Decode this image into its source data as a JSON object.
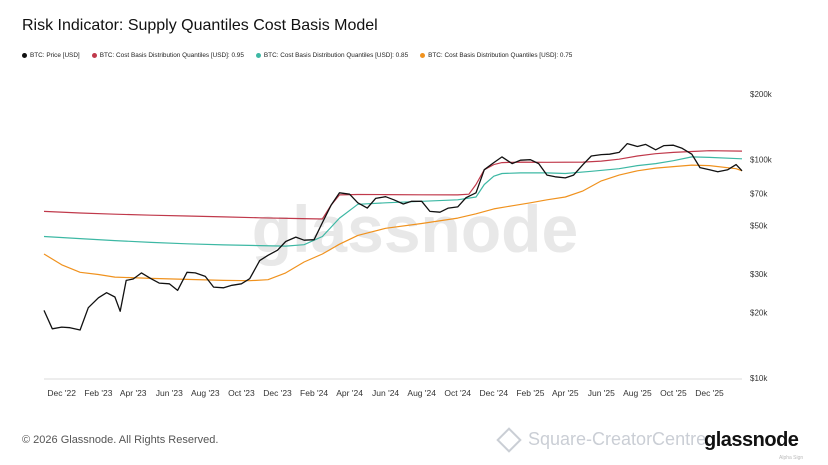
{
  "title": "Risk Indicator: Supply Quantiles Cost Basis Model",
  "legend": [
    {
      "label": "BTC: Price [USD]",
      "color": "#111111"
    },
    {
      "label": "BTC: Cost Basis Distribution Quantiles [USD]: 0.95",
      "color": "#c0394b"
    },
    {
      "label": "BTC: Cost Basis Distribution Quantiles [USD]: 0.85",
      "color": "#3db8a4"
    },
    {
      "label": "BTC: Cost Basis Distribution Quantiles [USD]: 0.75",
      "color": "#f0921e"
    }
  ],
  "footer": "© 2026 Glassnode. All Rights Reserved.",
  "logo": "glassnode",
  "watermark": "glassnode",
  "share_text": "Square-CreatorCentre...",
  "share_small": "Alpha Sign",
  "chart_data": {
    "type": "line",
    "title": "Risk Indicator: Supply Quantiles Cost Basis Model",
    "xlabel": "",
    "ylabel": "",
    "yscale": "log",
    "ylim": [
      10000,
      200000
    ],
    "xlim": [
      "2022-11-01",
      "2026-01-25"
    ],
    "grid": false,
    "legend_position": "top-left",
    "x_ticks": [
      "2022-12-01",
      "2023-02-01",
      "2023-04-01",
      "2023-06-01",
      "2023-08-01",
      "2023-10-01",
      "2023-12-01",
      "2024-02-01",
      "2024-04-01",
      "2024-06-01",
      "2024-08-01",
      "2024-10-01",
      "2024-12-01",
      "2025-02-01",
      "2025-04-01",
      "2025-06-01",
      "2025-08-01",
      "2025-10-01",
      "2025-12-01"
    ],
    "x_tick_labels": [
      "Dec '22",
      "Feb '23",
      "Apr '23",
      "Jun '23",
      "Aug '23",
      "Oct '23",
      "Dec '23",
      "Feb '24",
      "Apr '24",
      "Jun '24",
      "Aug '24",
      "Oct '24",
      "Dec '24",
      "Feb '25",
      "Apr '25",
      "Jun '25",
      "Aug '25",
      "Oct '25",
      "Dec '25"
    ],
    "y_ticks": [
      10000,
      20000,
      30000,
      50000,
      70000,
      100000,
      200000
    ],
    "y_tick_labels": [
      "$10k",
      "$20k",
      "$30k",
      "$50k",
      "$70k",
      "$100k",
      "$200k"
    ],
    "series": [
      {
        "name": "BTC: Price [USD]",
        "color": "#111111",
        "x": [
          "2022-11-01",
          "2022-11-15",
          "2022-12-01",
          "2022-12-15",
          "2023-01-01",
          "2023-01-15",
          "2023-02-01",
          "2023-02-15",
          "2023-03-01",
          "2023-03-10",
          "2023-03-20",
          "2023-04-01",
          "2023-04-15",
          "2023-05-01",
          "2023-05-15",
          "2023-06-01",
          "2023-06-15",
          "2023-07-01",
          "2023-07-15",
          "2023-08-01",
          "2023-08-15",
          "2023-09-01",
          "2023-09-15",
          "2023-10-01",
          "2023-10-15",
          "2023-11-01",
          "2023-11-15",
          "2023-12-01",
          "2023-12-15",
          "2024-01-01",
          "2024-01-15",
          "2024-02-01",
          "2024-02-15",
          "2024-03-01",
          "2024-03-15",
          "2024-04-01",
          "2024-04-15",
          "2024-05-01",
          "2024-05-15",
          "2024-06-01",
          "2024-06-15",
          "2024-07-01",
          "2024-07-15",
          "2024-08-01",
          "2024-08-15",
          "2024-09-01",
          "2024-09-15",
          "2024-10-01",
          "2024-10-15",
          "2024-11-01",
          "2024-11-15",
          "2024-12-01",
          "2024-12-15",
          "2025-01-01",
          "2025-01-15",
          "2025-02-01",
          "2025-02-15",
          "2025-03-01",
          "2025-03-15",
          "2025-04-01",
          "2025-04-15",
          "2025-05-01",
          "2025-05-15",
          "2025-06-01",
          "2025-06-15",
          "2025-07-01",
          "2025-07-15",
          "2025-08-01",
          "2025-08-15",
          "2025-09-01",
          "2025-09-15",
          "2025-10-01",
          "2025-10-15",
          "2025-11-01",
          "2025-11-15",
          "2025-12-01",
          "2025-12-15",
          "2026-01-01",
          "2026-01-15",
          "2026-01-25"
        ],
        "y": [
          20400,
          16800,
          17100,
          17000,
          16600,
          21000,
          23300,
          24600,
          23500,
          20200,
          28000,
          28400,
          30300,
          28500,
          27200,
          27000,
          25200,
          30500,
          30300,
          29200,
          26100,
          25900,
          26600,
          27000,
          28500,
          34500,
          36500,
          38500,
          42200,
          44200,
          42800,
          43000,
          51500,
          62000,
          70500,
          69500,
          63500,
          60000,
          66500,
          67700,
          65500,
          62700,
          64500,
          64500,
          58000,
          57500,
          60000,
          60800,
          67000,
          70500,
          90000,
          97000,
          103000,
          96000,
          99500,
          100000,
          96000,
          85000,
          83500,
          82500,
          85000,
          95000,
          104000,
          105500,
          106000,
          108000,
          118500,
          115000,
          117500,
          111000,
          116000,
          116500,
          113000,
          106000,
          92000,
          90000,
          88000,
          90000,
          95000,
          89000
        ]
      },
      {
        "name": "BTC: Cost Basis Distribution Quantiles [USD]: 0.95",
        "color": "#c0394b",
        "x": [
          "2022-11-01",
          "2023-01-01",
          "2023-03-01",
          "2023-05-01",
          "2023-07-01",
          "2023-09-01",
          "2023-11-01",
          "2024-01-01",
          "2024-02-15",
          "2024-03-01",
          "2024-03-15",
          "2024-04-15",
          "2024-06-01",
          "2024-08-01",
          "2024-10-01",
          "2024-10-20",
          "2024-11-01",
          "2024-11-15",
          "2024-12-01",
          "2024-12-15",
          "2025-01-15",
          "2025-03-01",
          "2025-05-01",
          "2025-06-01",
          "2025-07-01",
          "2025-08-01",
          "2025-09-01",
          "2025-10-01",
          "2025-11-01",
          "2025-12-01",
          "2026-01-25"
        ],
        "y": [
          58000,
          57000,
          56300,
          55700,
          55200,
          54700,
          54200,
          53800,
          53500,
          62000,
          69000,
          69300,
          69200,
          69100,
          69000,
          69500,
          77000,
          90000,
          95000,
          97000,
          97500,
          97300,
          97500,
          98500,
          100500,
          104000,
          106500,
          108000,
          109000,
          110000,
          109500
        ]
      },
      {
        "name": "BTC: Cost Basis Distribution Quantiles [USD]: 0.85",
        "color": "#3db8a4",
        "x": [
          "2022-11-01",
          "2023-01-01",
          "2023-03-01",
          "2023-05-01",
          "2023-07-01",
          "2023-09-01",
          "2023-11-01",
          "2023-12-15",
          "2024-01-15",
          "2024-02-15",
          "2024-03-15",
          "2024-04-15",
          "2024-06-01",
          "2024-08-01",
          "2024-10-01",
          "2024-11-01",
          "2024-11-15",
          "2024-12-01",
          "2024-12-15",
          "2025-01-15",
          "2025-03-01",
          "2025-04-01",
          "2025-05-15",
          "2025-07-01",
          "2025-08-01",
          "2025-09-01",
          "2025-10-01",
          "2025-11-01",
          "2025-12-01",
          "2026-01-25"
        ],
        "y": [
          44500,
          43500,
          42600,
          41800,
          41200,
          40700,
          40400,
          40200,
          40800,
          44500,
          54000,
          62500,
          63500,
          64500,
          65500,
          67500,
          77000,
          84000,
          86500,
          87000,
          87000,
          86500,
          88500,
          91000,
          94000,
          96000,
          99000,
          103000,
          102500,
          101000
        ]
      },
      {
        "name": "BTC: Cost Basis Distribution Quantiles [USD]: 0.75",
        "color": "#f0921e",
        "x": [
          "2022-11-01",
          "2022-12-01",
          "2023-01-01",
          "2023-02-01",
          "2023-03-01",
          "2023-05-01",
          "2023-07-01",
          "2023-09-01",
          "2023-10-15",
          "2023-11-15",
          "2023-12-15",
          "2024-01-15",
          "2024-02-15",
          "2024-03-15",
          "2024-04-15",
          "2024-06-01",
          "2024-08-01",
          "2024-10-01",
          "2024-11-01",
          "2024-12-01",
          "2025-01-01",
          "2025-02-01",
          "2025-03-01",
          "2025-04-01",
          "2025-05-01",
          "2025-06-01",
          "2025-07-01",
          "2025-08-01",
          "2025-09-01",
          "2025-10-01",
          "2025-11-01",
          "2025-12-01",
          "2026-01-15",
          "2026-01-25"
        ],
        "y": [
          37000,
          33000,
          30500,
          29800,
          29000,
          28600,
          28300,
          28000,
          27900,
          28200,
          30300,
          34000,
          37000,
          41000,
          45000,
          48500,
          51000,
          54000,
          56500,
          59500,
          61500,
          63500,
          65500,
          67500,
          72000,
          80000,
          85000,
          89000,
          91500,
          93000,
          94500,
          94000,
          91000,
          89000
        ]
      }
    ]
  }
}
